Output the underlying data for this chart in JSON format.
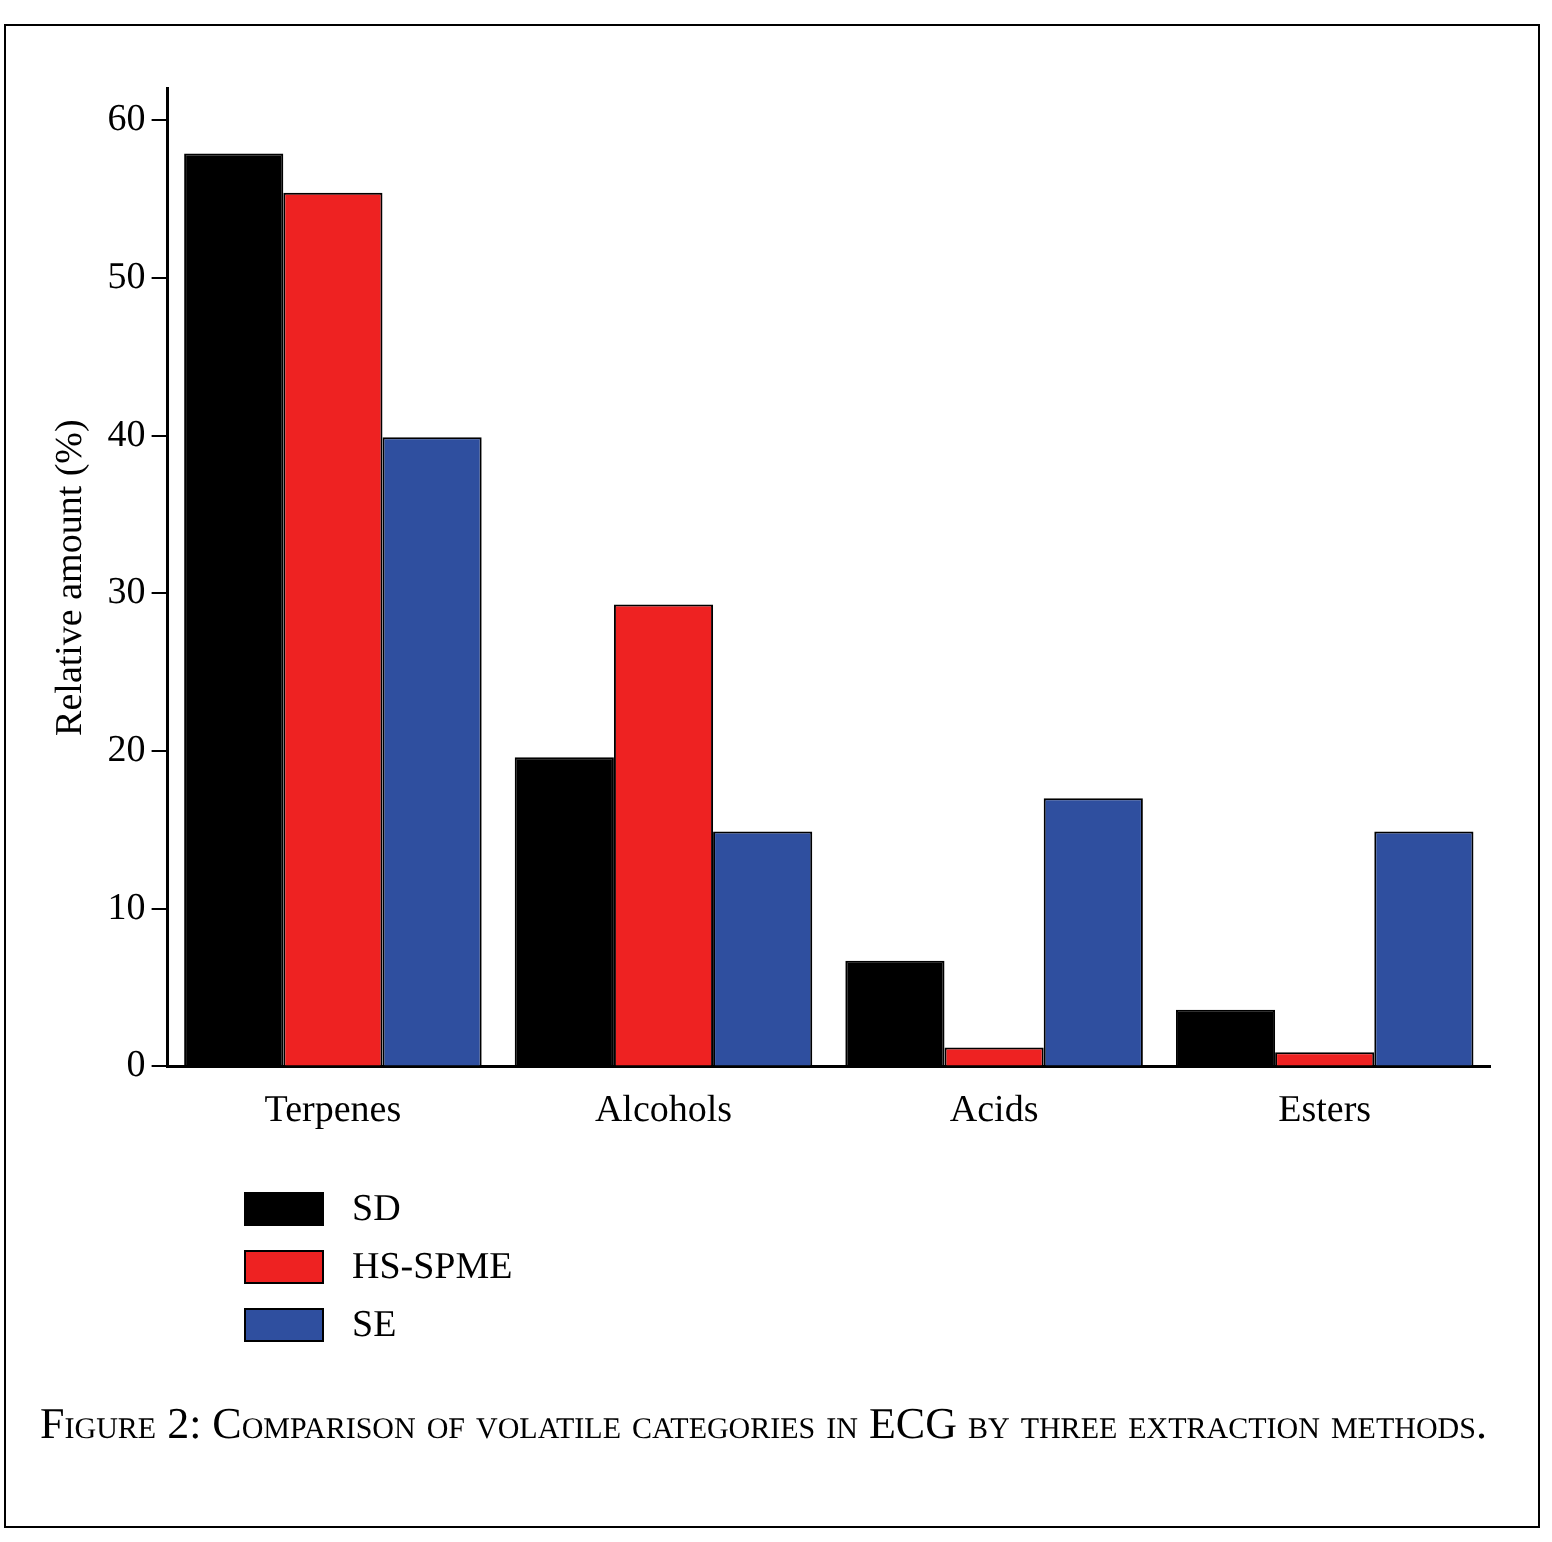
{
  "chart_data": {
    "type": "bar",
    "ylabel": "Relative amount (%)",
    "categories": [
      "Terpenes",
      "Alcohols",
      "Acids",
      "Esters"
    ],
    "series": [
      {
        "name": "SD",
        "color": "#000000",
        "values": [
          57.9,
          19.6,
          6.7,
          3.6
        ]
      },
      {
        "name": "HS-SPME",
        "color": "#ee2222",
        "values": [
          55.4,
          29.3,
          1.2,
          0.9
        ]
      },
      {
        "name": "SE",
        "color": "#2f4f9f",
        "values": [
          39.9,
          14.9,
          17.0,
          14.9
        ]
      }
    ],
    "ylim": [
      0,
      62
    ],
    "yticks": [
      0,
      10,
      20,
      30,
      40,
      50,
      60
    ],
    "grid": false,
    "legend": "bottom left",
    "annotations": [
      "Figure 2: Comparison of volatile categories in ECG by three extraction methods."
    ]
  }
}
